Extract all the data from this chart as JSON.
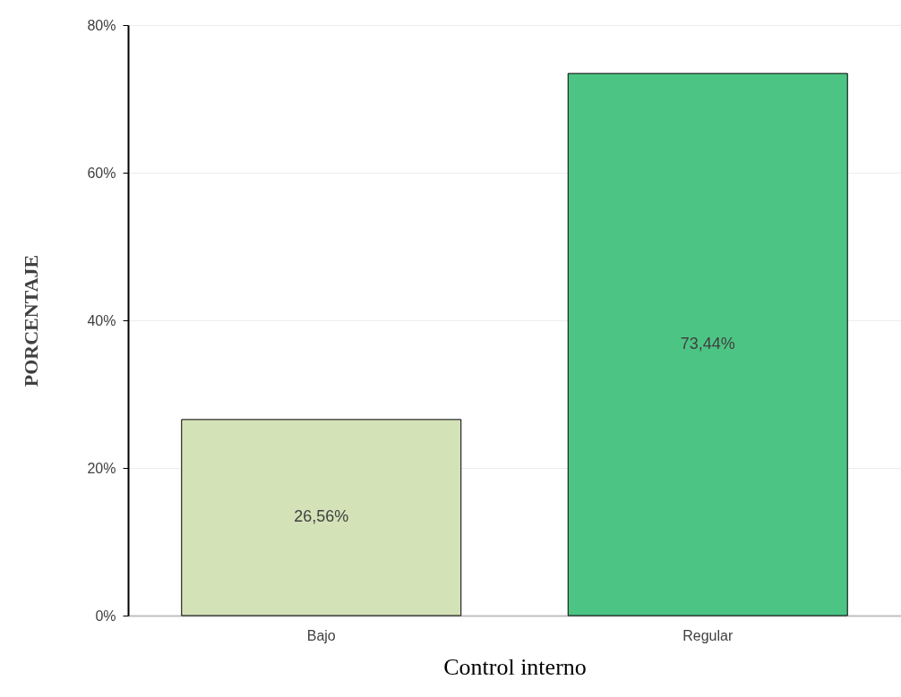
{
  "chart_data": {
    "type": "bar",
    "xlabel": "Control interno",
    "ylabel": "PORCENTAJE",
    "categories": [
      "Bajo",
      "Regular"
    ],
    "values": [
      26.56,
      73.44
    ],
    "colors": [
      "#d4e2b8",
      "#4cc584"
    ],
    "value_labels": [
      "26,56%",
      "73,44%"
    ],
    "ylim": [
      0,
      80
    ],
    "yticks": [
      {
        "value": 0,
        "label": "0%"
      },
      {
        "value": 20,
        "label": "20%"
      },
      {
        "value": 40,
        "label": "40%"
      },
      {
        "value": 60,
        "label": "60%"
      },
      {
        "value": 80,
        "label": "80%"
      }
    ],
    "grid": "y"
  }
}
